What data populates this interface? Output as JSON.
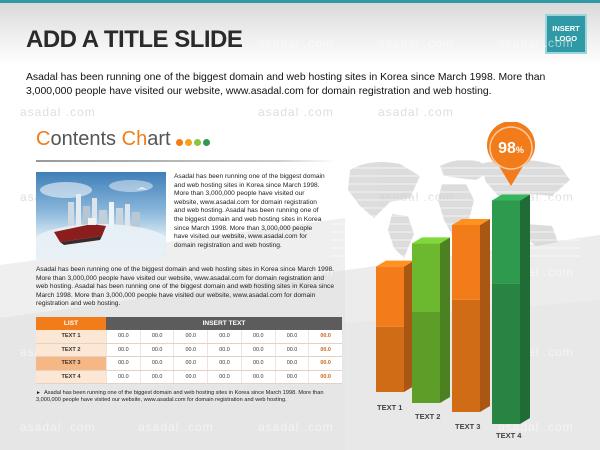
{
  "header": {
    "title": "ADD A TITLE SLIDE",
    "logo_line1": "INSERT",
    "logo_line2": "LOGO"
  },
  "intro_text": "Asadal has been running one of the biggest domain and web hosting sites in Korea since March 1998. More than 3,000,000 people have visited our website, www.asadal.com for domain registration and web hosting.",
  "watermark": "asadal .com",
  "section": {
    "title_c1": "C",
    "title_rest1": "ontents ",
    "title_c2": "Ch",
    "title_rest2": "art",
    "dot_colors": [
      "#f27c1a",
      "#f5a31a",
      "#8cc63f",
      "#2e9a4e"
    ]
  },
  "side_text": "Asadal has been running one of the biggest domain and web hosting sites in Korea since March 1998. More than 3,000,000 people have visited our website, www.asadal.com for domain registration and web hosting. Asadal has been running one of the biggest domain and web hosting sites in Korea since March 1998. More than 3,000,000 people have visited our website, www.asadal.com for domain registration and web hosting.",
  "paragraph": "Asadal has been running one of the biggest domain and web hosting sites in Korea since March 1998. More than 3,000,000 people have visited our website, www.asadal.com for domain registration and web hosting. Asadal has been running one of the biggest domain and web hosting sites in Korea since March 1998. More than 3,000,000 people have visited our website, www.asadal.com for domain registration and web hosting.",
  "table": {
    "col_list": "LIST",
    "col_insert": "INSERT TEXT",
    "rows": [
      {
        "label": "TEXT 1",
        "cells": [
          "00.0",
          "00.0",
          "00.0",
          "00.0",
          "00.0",
          "00.0",
          "00.0"
        ]
      },
      {
        "label": "TEXT 2",
        "cells": [
          "00.0",
          "00.0",
          "00.0",
          "00.0",
          "00.0",
          "00.0",
          "00.0"
        ]
      },
      {
        "label": "TEXT 3",
        "cells": [
          "00.0",
          "00.0",
          "00.0",
          "00.0",
          "00.0",
          "00.0",
          "00.0"
        ]
      },
      {
        "label": "TEXT 4",
        "cells": [
          "00.0",
          "00.0",
          "00.0",
          "00.0",
          "00.0",
          "00.0",
          "00.0"
        ]
      }
    ]
  },
  "footnote": "Asadal has been running one of the biggest domain and web hosting sites in Korea since March 1998. More than 3,000,000 people have visited our website, www.asadal.com for domain registration and web hosting.",
  "chart_data": {
    "type": "bar",
    "categories": [
      "TEXT 1",
      "TEXT 2",
      "TEXT 3",
      "TEXT 4"
    ],
    "values": [
      55,
      70,
      82,
      98
    ],
    "lower_segment_fraction": [
      0.52,
      0.57,
      0.6,
      0.63
    ],
    "bar_colors": [
      "#f27c1a",
      "#6cb82f",
      "#f27c1a",
      "#2e9a4e"
    ],
    "callout_value": "98",
    "callout_unit": "%",
    "callout_color": "#f27c1a"
  }
}
